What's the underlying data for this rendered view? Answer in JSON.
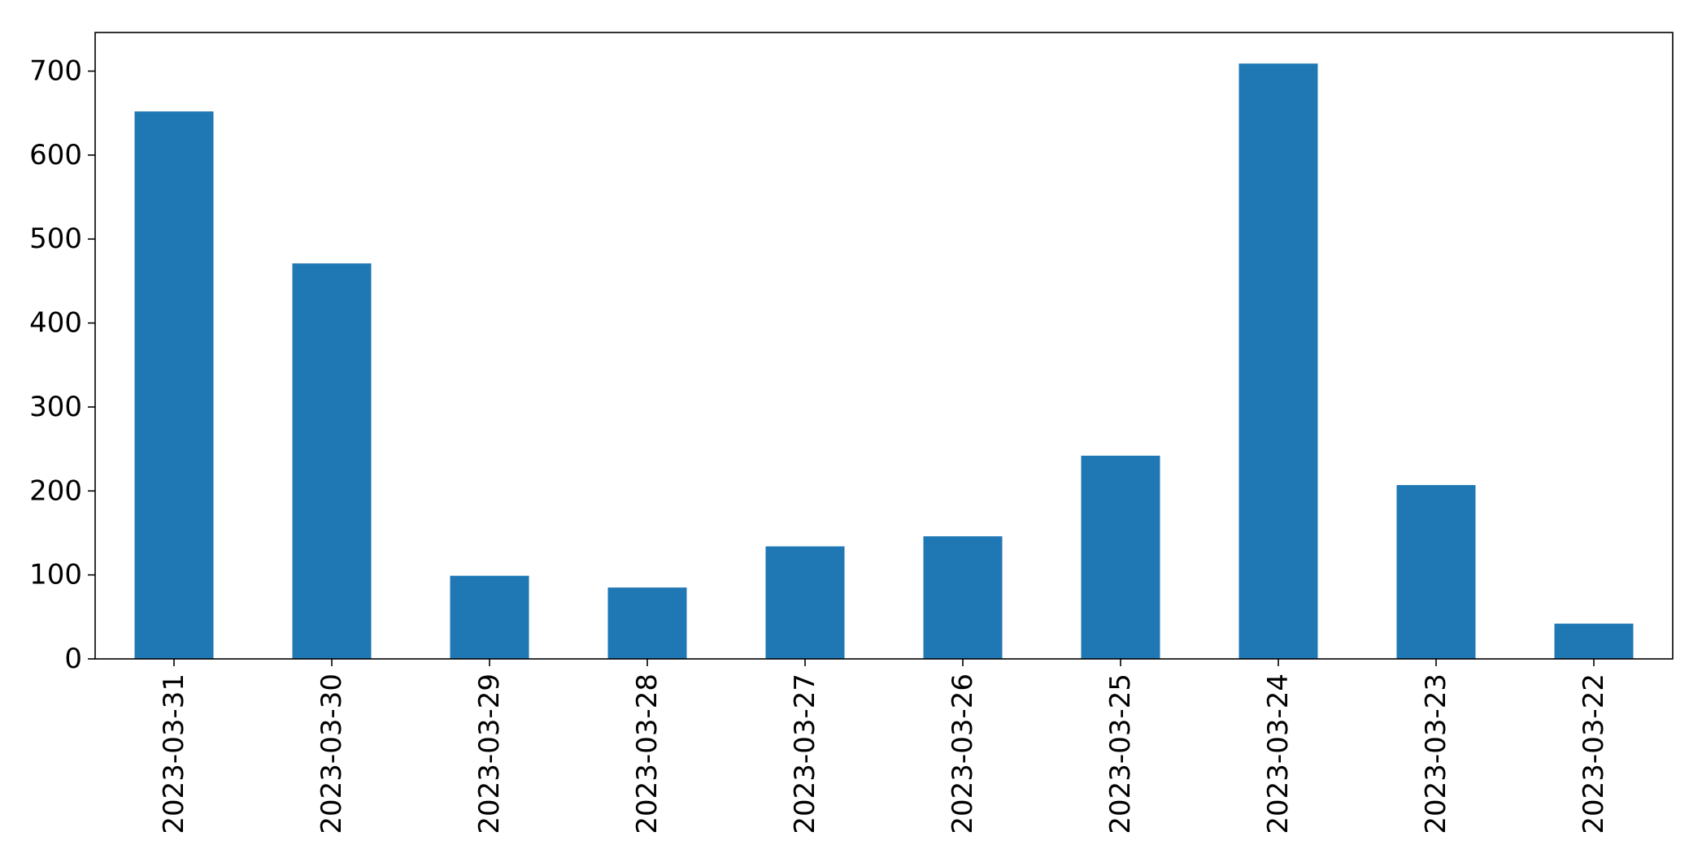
{
  "chart_data": {
    "type": "bar",
    "title": "",
    "xlabel": "",
    "ylabel": "",
    "categories": [
      "2023-03-31",
      "2023-03-30",
      "2023-03-29",
      "2023-03-28",
      "2023-03-27",
      "2023-03-26",
      "2023-03-25",
      "2023-03-24",
      "2023-03-23",
      "2023-03-22"
    ],
    "values": [
      652,
      471,
      99,
      85,
      134,
      146,
      242,
      709,
      207,
      42
    ],
    "ylim": [
      0,
      746
    ],
    "yticks": [
      0,
      100,
      200,
      300,
      400,
      500,
      600,
      700
    ],
    "bar_color": "#1f77b4",
    "grid": false,
    "legend": "none"
  }
}
